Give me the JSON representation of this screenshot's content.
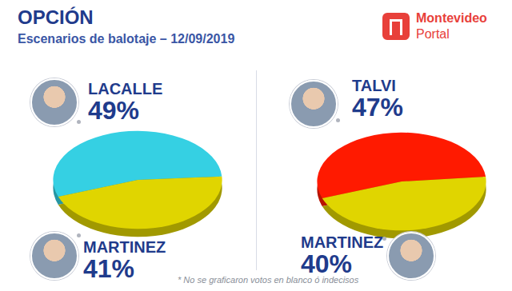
{
  "title": "OPCIÓN",
  "subtitle": "Escenarios de balotaje – 12/09/2019",
  "logo_text": [
    "Montevideo",
    "Portal"
  ],
  "note": "* No se graficaron votos en blanco ó indecisos",
  "chart_data": [
    {
      "type": "pie",
      "categories": [
        "LACALLE",
        "MARTINEZ"
      ],
      "values": [
        49,
        41
      ],
      "value_labels": [
        "49%",
        "41%"
      ],
      "colors": [
        "#35d0e3",
        "#e0d500"
      ],
      "data_labels": true
    },
    {
      "type": "pie",
      "categories": [
        "TALVI",
        "MARTINEZ"
      ],
      "values": [
        47,
        40
      ],
      "value_labels": [
        "47%",
        "40%"
      ],
      "colors": [
        "#ff1a00",
        "#e0d500"
      ],
      "data_labels": true
    }
  ]
}
